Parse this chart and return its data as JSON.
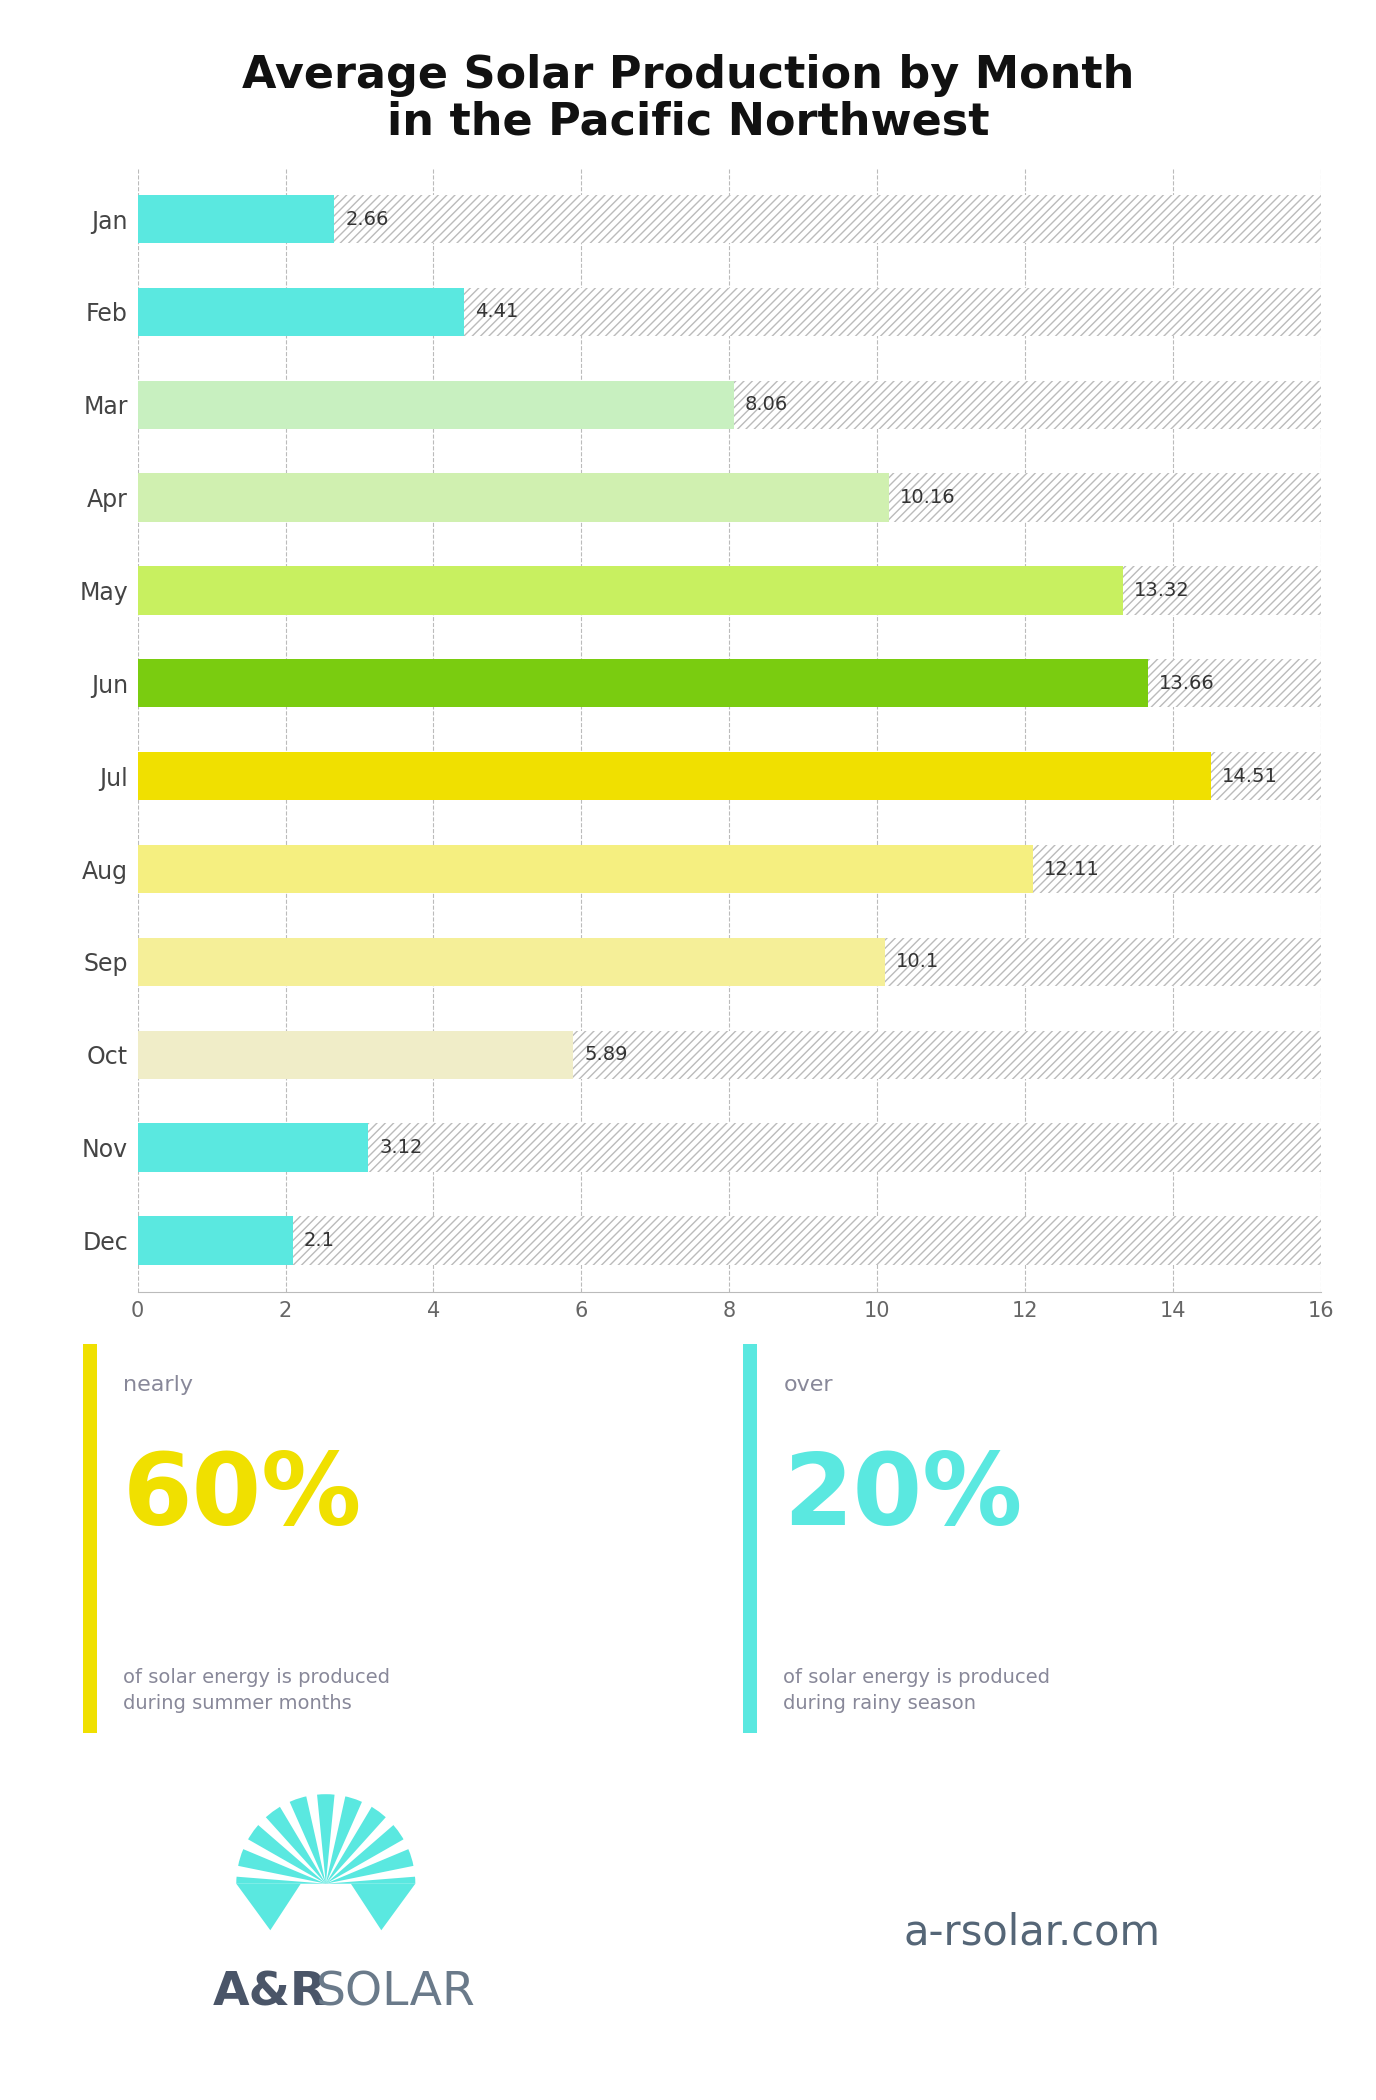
{
  "title_line1": "Average Solar Production by Month",
  "title_line2": "in the Pacific Northwest",
  "months": [
    "Jan",
    "Feb",
    "Mar",
    "Apr",
    "May",
    "Jun",
    "Jul",
    "Aug",
    "Sep",
    "Oct",
    "Nov",
    "Dec"
  ],
  "values": [
    2.66,
    4.41,
    8.06,
    10.16,
    13.32,
    13.66,
    14.51,
    12.11,
    10.1,
    5.89,
    3.12,
    2.1
  ],
  "bar_colors": [
    "#5AE8E0",
    "#5AE8E0",
    "#c8f0c0",
    "#d0f0b0",
    "#c8f060",
    "#7ACC10",
    "#f0e000",
    "#f5ef80",
    "#f5ef98",
    "#f0edc8",
    "#5AE8E0",
    "#5AE8E0"
  ],
  "xlim": [
    0,
    16
  ],
  "xticks": [
    0,
    2,
    4,
    6,
    8,
    10,
    12,
    14,
    16
  ],
  "hatch_color": "#bbbbbb",
  "background_color": "#ffffff",
  "value_label_color": "#333333",
  "month_label_color": "#444444",
  "axis_tick_color": "#666666",
  "stat1_side_color": "#f0e000",
  "stat2_side_color": "#5AE8E0",
  "stat1_pct": "60%",
  "stat1_pct_color": "#f0e000",
  "stat1_label_top": "nearly",
  "stat1_label_bottom": "of solar energy is produced\nduring summer months",
  "stat2_pct": "20%",
  "stat2_pct_color": "#5AE8E0",
  "stat2_label_top": "over",
  "stat2_label_bottom": "of solar energy is produced\nduring rainy season",
  "stat_text_color": "#888899",
  "website_text": "a-rsolar.com",
  "website_color": "#556677",
  "logo_bold_color": "#4a5568",
  "logo_light_color": "#6a7a8a",
  "sun_color": "#5AE8E0"
}
